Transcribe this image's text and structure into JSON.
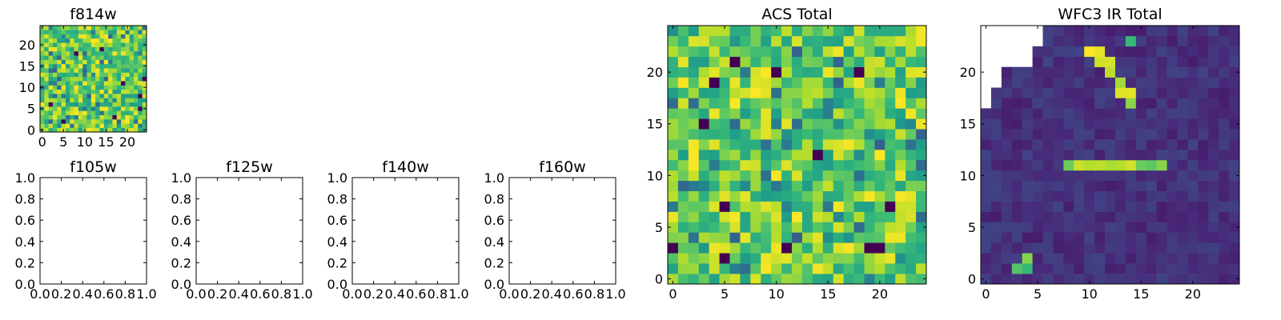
{
  "chart_data": [
    {
      "id": "f814w",
      "type": "heatmap",
      "title": "f814w",
      "xlim": [
        -0.5,
        24.5
      ],
      "ylim": [
        -0.5,
        24.5
      ],
      "xticks": [
        0,
        5,
        10,
        15,
        20
      ],
      "yticks": [
        0,
        5,
        10,
        15,
        20
      ],
      "colormap": "viridis",
      "seed": 814
    },
    {
      "id": "f105w",
      "type": "heatmap",
      "title": "f105w",
      "empty": true,
      "xlim": [
        0,
        1
      ],
      "ylim": [
        0,
        1
      ],
      "xticks": [
        0.0,
        0.2,
        0.4,
        0.6,
        0.8,
        1.0
      ],
      "yticks": [
        0.0,
        0.2,
        0.4,
        0.6,
        0.8,
        1.0
      ]
    },
    {
      "id": "f125w",
      "type": "heatmap",
      "title": "f125w",
      "empty": true,
      "xlim": [
        0,
        1
      ],
      "ylim": [
        0,
        1
      ],
      "xticks": [
        0.0,
        0.2,
        0.4,
        0.6,
        0.8,
        1.0
      ],
      "yticks": [
        0.0,
        0.2,
        0.4,
        0.6,
        0.8,
        1.0
      ]
    },
    {
      "id": "f140w",
      "type": "heatmap",
      "title": "f140w",
      "empty": true,
      "xlim": [
        0,
        1
      ],
      "ylim": [
        0,
        1
      ],
      "xticks": [
        0.0,
        0.2,
        0.4,
        0.6,
        0.8,
        1.0
      ],
      "yticks": [
        0.0,
        0.2,
        0.4,
        0.6,
        0.8,
        1.0
      ]
    },
    {
      "id": "f160w",
      "type": "heatmap",
      "title": "f160w",
      "empty": true,
      "xlim": [
        0,
        1
      ],
      "ylim": [
        0,
        1
      ],
      "xticks": [
        0.0,
        0.2,
        0.4,
        0.6,
        0.8,
        1.0
      ],
      "yticks": [
        0.0,
        0.2,
        0.4,
        0.6,
        0.8,
        1.0
      ]
    },
    {
      "id": "acs-total",
      "type": "heatmap",
      "title": "ACS Total",
      "xlim": [
        -0.5,
        24.5
      ],
      "ylim": [
        -0.5,
        24.5
      ],
      "xticks": [
        0,
        5,
        10,
        15,
        20
      ],
      "yticks": [
        0,
        5,
        10,
        15,
        20
      ],
      "colormap": "viridis",
      "seed": 1234
    },
    {
      "id": "wfc3-ir-total",
      "type": "heatmap",
      "title": "WFC3 IR Total",
      "xlim": [
        -0.5,
        24.5
      ],
      "ylim": [
        -0.5,
        24.5
      ],
      "xticks": [
        0,
        5,
        10,
        15,
        20
      ],
      "yticks": [
        0,
        5,
        10,
        15,
        20
      ],
      "colormap": "viridis",
      "seed": 4321,
      "background_level": 0.08,
      "bright_features": [
        {
          "shape": "horizontal-bar",
          "row": 11,
          "cols": [
            8,
            17
          ],
          "level": 0.85
        },
        {
          "shape": "diagonal-streak",
          "cells": [
            [
              10,
              22
            ],
            [
              11,
              22
            ],
            [
              11,
              21
            ],
            [
              12,
              21
            ],
            [
              12,
              20
            ],
            [
              13,
              19
            ],
            [
              13,
              18
            ],
            [
              14,
              18
            ],
            [
              14,
              17
            ]
          ],
          "level": 0.9
        },
        {
          "shape": "hot-pixel",
          "cells": [
            [
              14,
              23
            ]
          ],
          "level": 0.6
        },
        {
          "shape": "hot-pixel",
          "cells": [
            [
              4,
              1
            ],
            [
              3,
              1
            ],
            [
              4,
              2
            ]
          ],
          "level": 0.75
        }
      ],
      "masked_region": "top-left"
    }
  ]
}
